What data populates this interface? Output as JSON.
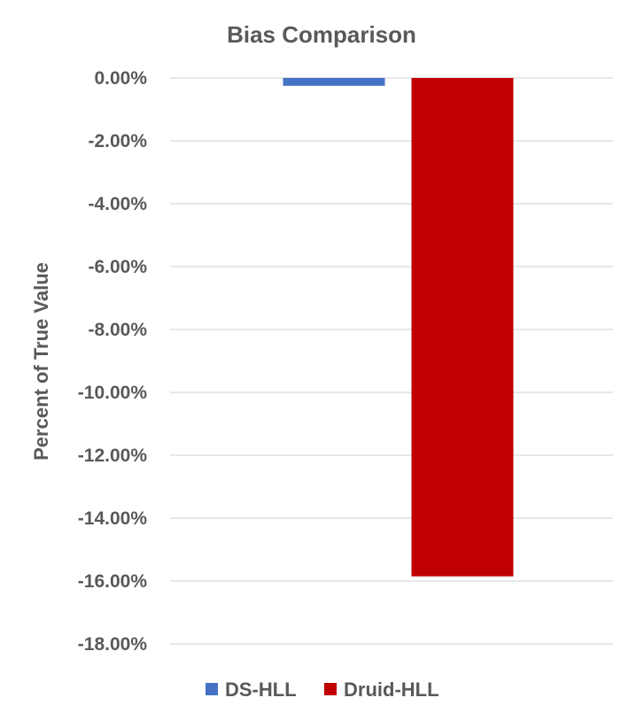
{
  "chart_data": {
    "type": "bar",
    "title": "Bias Comparison",
    "xlabel": "",
    "ylabel": "Percent of True Value",
    "ylim": [
      -18,
      0
    ],
    "y_ticks": [
      0,
      -2,
      -4,
      -6,
      -8,
      -10,
      -12,
      -14,
      -16,
      -18
    ],
    "y_tick_labels": [
      "0.00%",
      "-2.00%",
      "-4.00%",
      "-6.00%",
      "-8.00%",
      "-10.00%",
      "-12.00%",
      "-14.00%",
      "-16.00%",
      "-18.00%"
    ],
    "grid": true,
    "legend_position": "bottom",
    "series": [
      {
        "name": "DS-HLL",
        "values": [
          -0.25
        ],
        "color": "#4472c4"
      },
      {
        "name": "Druid-HLL",
        "values": [
          -15.85
        ],
        "color": "#c00000"
      }
    ]
  }
}
